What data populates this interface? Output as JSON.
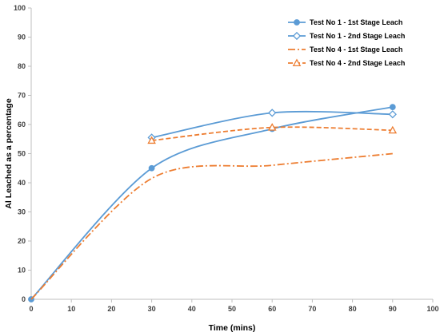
{
  "chart_data": {
    "type": "line",
    "title": "",
    "xlabel": "Time (mins)",
    "ylabel": "Al Leached as a percentage",
    "xlim": [
      0,
      100
    ],
    "ylim": [
      0,
      100
    ],
    "xticks": [
      0,
      10,
      20,
      30,
      40,
      50,
      60,
      70,
      80,
      90,
      100
    ],
    "yticks": [
      0,
      10,
      20,
      30,
      40,
      50,
      60,
      70,
      80,
      90,
      100
    ],
    "grid": false,
    "legend": "top-right",
    "series": [
      {
        "name": "Test No 1 - 1st Stage Leach",
        "color": "#5B9BD5",
        "line": "solid",
        "marker": "circle-filled",
        "x": [
          0,
          30,
          60,
          90
        ],
        "y": [
          0,
          45,
          58.5,
          66
        ]
      },
      {
        "name": "Test No 1 - 2nd Stage Leach",
        "color": "#5B9BD5",
        "line": "solid",
        "marker": "diamond-open",
        "x": [
          30,
          60,
          90
        ],
        "y": [
          55.5,
          64,
          63.5
        ]
      },
      {
        "name": "Test No 4 - 1st Stage Leach",
        "color": "#ED7D31",
        "line": "dash-dot",
        "marker": "none",
        "x": [
          0,
          30,
          60,
          90
        ],
        "y": [
          0,
          41.5,
          46,
          50
        ]
      },
      {
        "name": "Test No 4 - 2nd Stage Leach",
        "color": "#ED7D31",
        "line": "dashed",
        "marker": "triangle-open",
        "x": [
          30,
          60,
          90
        ],
        "y": [
          54.5,
          59,
          58
        ]
      }
    ]
  }
}
